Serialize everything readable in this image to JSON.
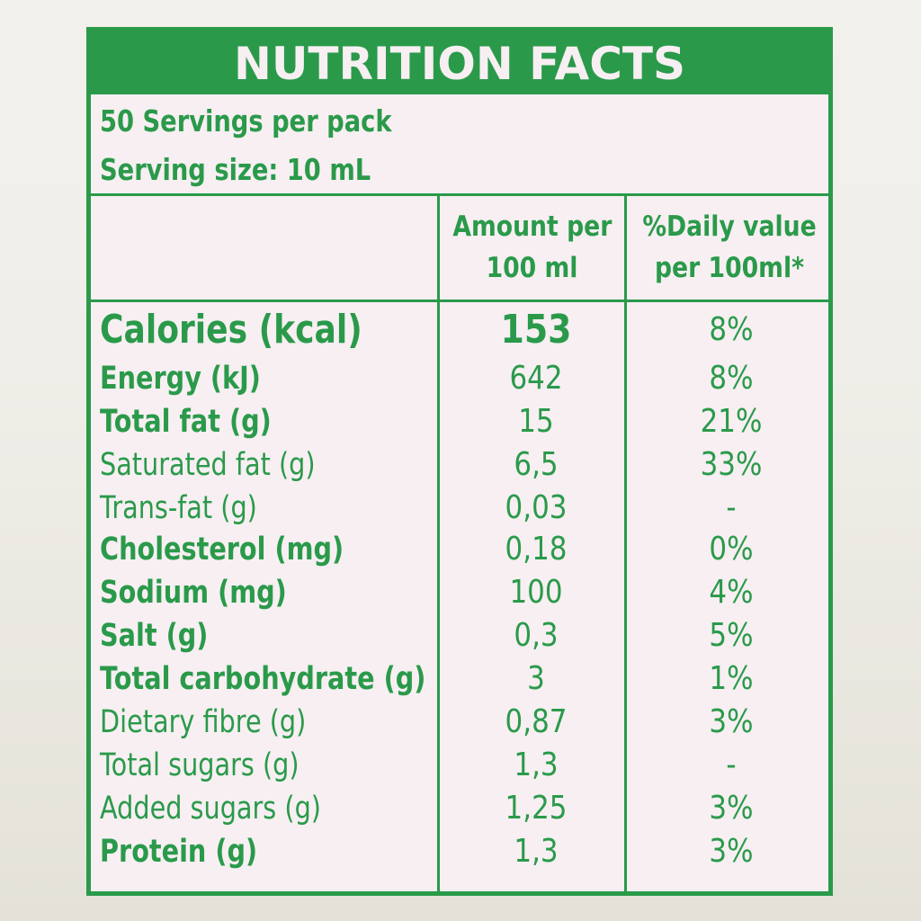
{
  "label": {
    "title": "NUTRITION FACTS",
    "servings_per_pack": "50 Servings per pack",
    "serving_size": "Serving size: 10 mL",
    "columns": {
      "amount_line1": "Amount per",
      "amount_line2": "100 ml",
      "daily_line1": "%Daily value",
      "daily_line2": "per 100ml*"
    },
    "colors": {
      "green": "#2a9a4a",
      "background": "#f7eff2"
    },
    "rows": [
      {
        "name": "Calories (kcal)",
        "amount": "153",
        "daily": "8%",
        "bold": true,
        "big": true
      },
      {
        "name": "Energy (kJ)",
        "amount": "642",
        "daily": "8%",
        "bold": true,
        "big": false
      },
      {
        "name": "Total fat (g)",
        "amount": "15",
        "daily": "21%",
        "bold": true,
        "big": false
      },
      {
        "name": "Saturated fat (g)",
        "amount": "6,5",
        "daily": "33%",
        "bold": false,
        "big": false
      },
      {
        "name": "Trans-fat (g)",
        "amount": "0,03",
        "daily": "-",
        "bold": false,
        "big": false
      },
      {
        "name": "Cholesterol (mg)",
        "amount": "0,18",
        "daily": "0%",
        "bold": true,
        "big": false
      },
      {
        "name": "Sodium (mg)",
        "amount": "100",
        "daily": "4%",
        "bold": true,
        "big": false
      },
      {
        "name": "Salt (g)",
        "amount": "0,3",
        "daily": "5%",
        "bold": true,
        "big": false
      },
      {
        "name": "Total carbohydrate (g)",
        "amount": "3",
        "daily": "1%",
        "bold": true,
        "big": false
      },
      {
        "name": "Dietary fibre (g)",
        "amount": "0,87",
        "daily": "3%",
        "bold": false,
        "big": false
      },
      {
        "name": "Total sugars (g)",
        "amount": "1,3",
        "daily": "-",
        "bold": false,
        "big": false
      },
      {
        "name": "Added sugars (g)",
        "amount": "1,25",
        "daily": "3%",
        "bold": false,
        "big": false
      },
      {
        "name": "Protein (g)",
        "amount": "1,3",
        "daily": "3%",
        "bold": true,
        "big": false
      }
    ]
  }
}
